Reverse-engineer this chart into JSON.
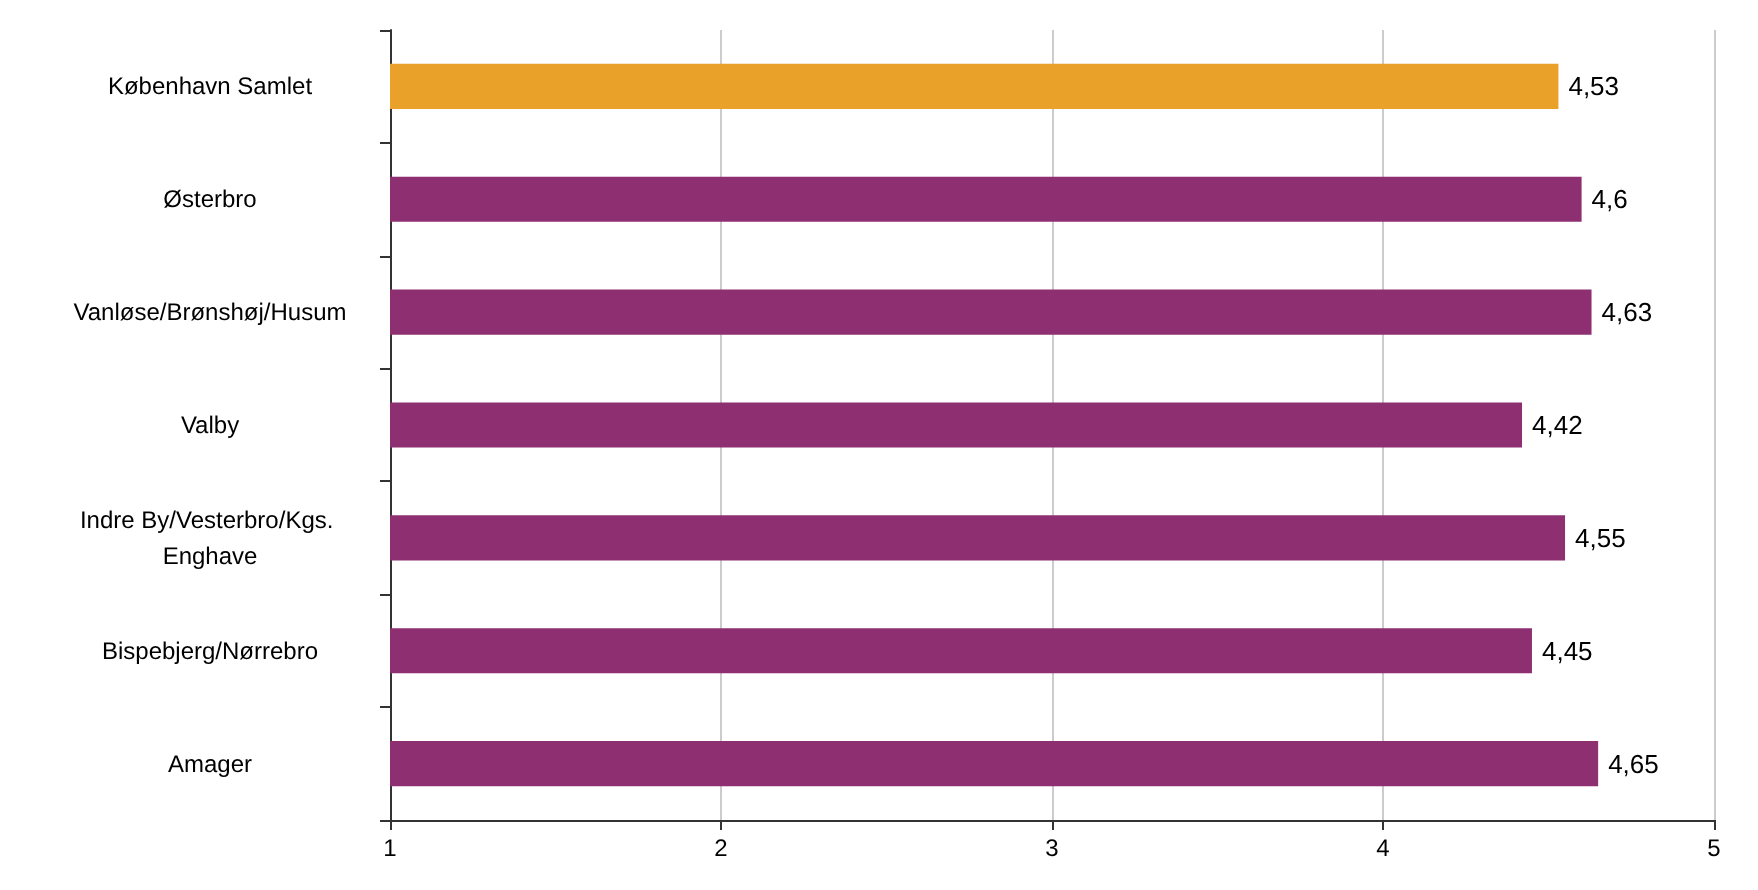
{
  "chart_data": {
    "type": "bar",
    "orientation": "horizontal",
    "categories": [
      "København Samlet",
      "Østerbro",
      "Vanløse/Brønshøj/Husum",
      "Valby",
      "Indre By/Vesterbro/Kgs. Enghave",
      "Bispebjerg/Nørrebro",
      "Amager"
    ],
    "values": [
      4.53,
      4.6,
      4.63,
      4.42,
      4.55,
      4.45,
      4.65
    ],
    "value_labels": [
      "4,53",
      "4,6",
      "4,63",
      "4,42",
      "4,55",
      "4,45",
      "4,65"
    ],
    "colors": [
      "#e9a12a",
      "#8e2f72",
      "#8e2f72",
      "#8e2f72",
      "#8e2f72",
      "#8e2f72",
      "#8e2f72"
    ],
    "xlim": [
      1,
      5
    ],
    "xticks": [
      1,
      2,
      3,
      4,
      5
    ],
    "grid": "x"
  }
}
